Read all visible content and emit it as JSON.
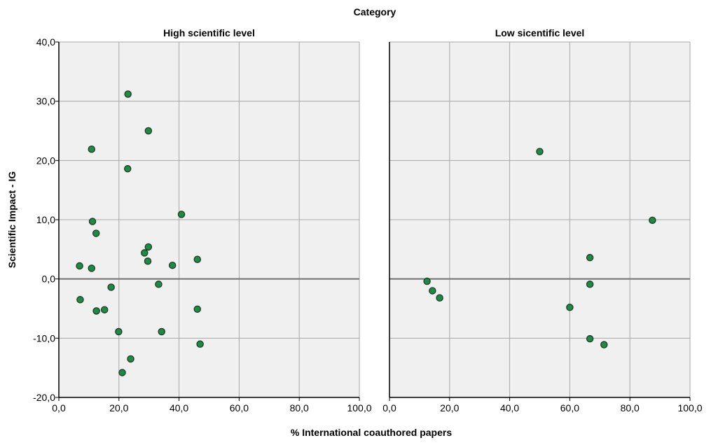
{
  "chart_data": {
    "type": "scatter",
    "title": "Category",
    "xlabel": "% International coauthored papers",
    "ylabel": "Scientific Impact - IG",
    "xlim": [
      0,
      100
    ],
    "ylim": [
      -20,
      40
    ],
    "x_ticks": [
      "0,0",
      "20,0",
      "40,0",
      "60,0",
      "80,0",
      "100,0"
    ],
    "y_ticks": [
      "-20,0",
      "-10,0",
      "0,0",
      "10,0",
      "20,0",
      "30,0",
      "40,0"
    ],
    "x_tick_values": [
      0,
      20,
      40,
      60,
      80,
      100
    ],
    "y_tick_values": [
      -20,
      -10,
      0,
      10,
      20,
      30,
      40
    ],
    "grid": true,
    "reference_line_y": 0,
    "point_color": "#1e8a45",
    "panels": [
      {
        "name": "High scientific level",
        "points": [
          {
            "x": 23.0,
            "y": 31.2
          },
          {
            "x": 29.8,
            "y": 25.0
          },
          {
            "x": 10.9,
            "y": 21.9
          },
          {
            "x": 22.9,
            "y": 18.6
          },
          {
            "x": 40.8,
            "y": 10.9
          },
          {
            "x": 11.2,
            "y": 9.7
          },
          {
            "x": 12.4,
            "y": 7.7
          },
          {
            "x": 29.8,
            "y": 5.4
          },
          {
            "x": 28.5,
            "y": 4.4
          },
          {
            "x": 46.1,
            "y": 3.3
          },
          {
            "x": 29.6,
            "y": 3.0
          },
          {
            "x": 37.8,
            "y": 2.3
          },
          {
            "x": 6.9,
            "y": 2.2
          },
          {
            "x": 10.9,
            "y": 1.8
          },
          {
            "x": 33.2,
            "y": -0.9
          },
          {
            "x": 17.4,
            "y": -1.4
          },
          {
            "x": 7.1,
            "y": -3.5
          },
          {
            "x": 46.1,
            "y": -5.1
          },
          {
            "x": 15.2,
            "y": -5.2
          },
          {
            "x": 12.5,
            "y": -5.4
          },
          {
            "x": 19.9,
            "y": -8.9
          },
          {
            "x": 34.2,
            "y": -8.9
          },
          {
            "x": 47.0,
            "y": -11.0
          },
          {
            "x": 23.9,
            "y": -13.5
          },
          {
            "x": 21.1,
            "y": -15.8
          }
        ]
      },
      {
        "name": "Low sicentific level",
        "points": [
          {
            "x": 50.0,
            "y": 21.5
          },
          {
            "x": 87.5,
            "y": 9.9
          },
          {
            "x": 66.7,
            "y": 3.6
          },
          {
            "x": 12.5,
            "y": -0.4
          },
          {
            "x": 66.7,
            "y": -0.9
          },
          {
            "x": 14.3,
            "y": -2.0
          },
          {
            "x": 16.7,
            "y": -3.2
          },
          {
            "x": 60.0,
            "y": -4.8
          },
          {
            "x": 66.7,
            "y": -10.1
          },
          {
            "x": 71.4,
            "y": -11.1
          }
        ]
      }
    ]
  }
}
